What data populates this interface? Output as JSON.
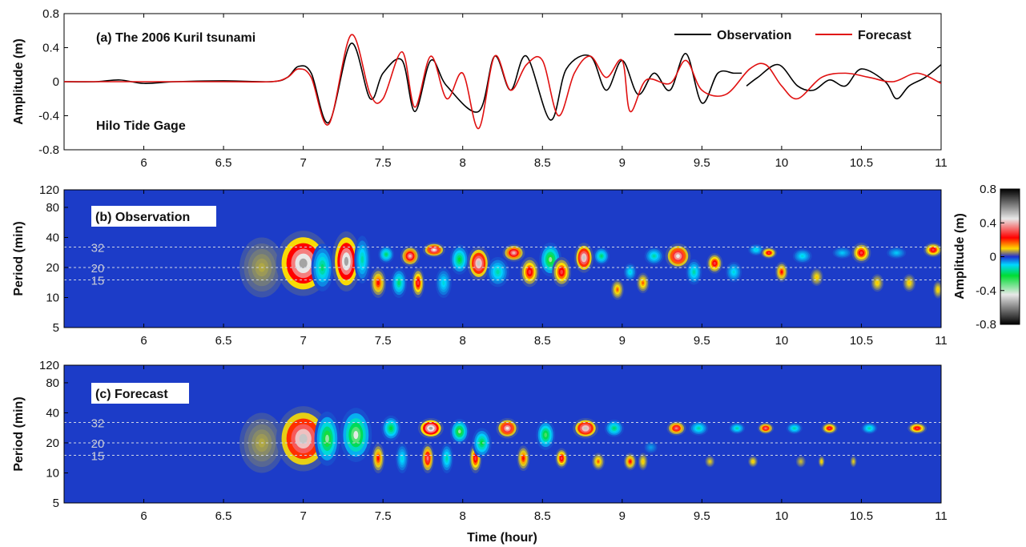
{
  "chart_data": [
    {
      "type": "line",
      "panel_label": "(a) The 2006 Kuril tsunami",
      "note": "Hilo Tide Gage",
      "ylabel": "Amplitude (m)",
      "xlim": [
        5.5,
        11
      ],
      "ylim": [
        -0.8,
        0.8
      ],
      "x_ticks": [
        "6",
        "6.5",
        "7",
        "7.5",
        "8",
        "8.5",
        "9",
        "9.5",
        "10",
        "10.5",
        "11"
      ],
      "y_ticks": [
        "-0.8",
        "-0.4",
        "0",
        "0.4",
        "0.8"
      ],
      "legend_position": "top-right",
      "series": [
        {
          "name": "Observation",
          "color": "#000000",
          "x": [
            5.5,
            5.7,
            5.85,
            6.0,
            6.2,
            6.5,
            6.8,
            6.9,
            6.97,
            7.05,
            7.16,
            7.3,
            7.42,
            7.5,
            7.62,
            7.7,
            7.8,
            7.9,
            8.1,
            8.2,
            8.3,
            8.4,
            8.55,
            8.65,
            8.8,
            8.9,
            9.0,
            9.1,
            9.2,
            9.3,
            9.4,
            9.5,
            9.6,
            9.7,
            9.75
          ],
          "y": [
            0,
            0,
            0.02,
            -0.02,
            0,
            0.01,
            0,
            0.05,
            0.18,
            0.1,
            -0.48,
            0.45,
            -0.2,
            0.1,
            0.25,
            -0.35,
            0.25,
            -0.05,
            -0.35,
            0.3,
            -0.1,
            0.3,
            -0.45,
            0.15,
            0.3,
            -0.1,
            0.25,
            -0.15,
            0.1,
            -0.1,
            0.33,
            -0.25,
            0.1,
            0.1,
            0.1
          ]
        },
        {
          "name": "Observation",
          "color": "#000000",
          "x": [
            9.78,
            9.85,
            9.98,
            10.1,
            10.2,
            10.3,
            10.4,
            10.5,
            10.65,
            10.72,
            10.8,
            10.9,
            11.0
          ],
          "y": [
            -0.05,
            0.05,
            0.2,
            -0.05,
            -0.1,
            0.02,
            -0.05,
            0.15,
            0.0,
            -0.2,
            -0.05,
            0.05,
            0.2
          ]
        },
        {
          "name": "Forecast",
          "color": "#e01010",
          "x": [
            5.5,
            6.0,
            6.5,
            6.8,
            6.9,
            6.97,
            7.05,
            7.16,
            7.3,
            7.42,
            7.5,
            7.62,
            7.7,
            7.8,
            7.9,
            8.0,
            8.1,
            8.2,
            8.3,
            8.4,
            8.5,
            8.6,
            8.7,
            8.8,
            8.9,
            9.0,
            9.05,
            9.15,
            9.3,
            9.4,
            9.5,
            9.65,
            9.8,
            9.9,
            10.0,
            10.1,
            10.25,
            10.4,
            10.55,
            10.7,
            10.85,
            11.0
          ],
          "y": [
            0,
            0,
            0,
            0,
            0.05,
            0.15,
            0.05,
            -0.5,
            0.55,
            -0.15,
            -0.2,
            0.35,
            -0.3,
            0.3,
            -0.2,
            0.1,
            -0.55,
            0.3,
            -0.1,
            0.2,
            0.25,
            -0.4,
            0.1,
            0.3,
            0.05,
            0.25,
            -0.35,
            0.02,
            -0.02,
            0.25,
            -0.1,
            -0.15,
            0.15,
            0.2,
            -0.05,
            -0.2,
            0.05,
            0.1,
            0.05,
            0.0,
            0.1,
            -0.02
          ]
        }
      ]
    },
    {
      "type": "heatmap",
      "panel_label": "(b) Observation",
      "ylabel": "Period (min)",
      "xlim": [
        5.5,
        11
      ],
      "y_scale": "log",
      "ylim": [
        5,
        120
      ],
      "x_ticks": [
        "6",
        "6.5",
        "7",
        "7.5",
        "8",
        "8.5",
        "9",
        "9.5",
        "10",
        "10.5",
        "11"
      ],
      "y_ticks": [
        "5",
        "10",
        "20",
        "40",
        "80",
        "120"
      ],
      "reference_lines": [
        "32",
        "20",
        "15"
      ],
      "blobs": [
        [
          6.74,
          20,
          0.14,
          4.0,
          0.08
        ],
        [
          7.0,
          22,
          0.17,
          4.5,
          0.55
        ],
        [
          7.12,
          20,
          0.07,
          3.0,
          -0.3
        ],
        [
          7.27,
          23,
          0.09,
          4.0,
          0.55
        ],
        [
          7.37,
          24,
          0.05,
          3.0,
          -0.25
        ],
        [
          7.47,
          14,
          0.05,
          2.0,
          0.25
        ],
        [
          7.52,
          27,
          0.05,
          1.5,
          -0.3
        ],
        [
          7.6,
          14,
          0.05,
          2.0,
          -0.3
        ],
        [
          7.67,
          26,
          0.06,
          1.6,
          0.4
        ],
        [
          7.72,
          14,
          0.04,
          2.0,
          0.3
        ],
        [
          7.82,
          30,
          0.07,
          1.4,
          0.45
        ],
        [
          7.88,
          14,
          0.05,
          2.0,
          -0.2
        ],
        [
          7.98,
          24,
          0.06,
          2.0,
          -0.35
        ],
        [
          8.1,
          22,
          0.07,
          2.2,
          0.5
        ],
        [
          8.22,
          18,
          0.07,
          2.0,
          -0.25
        ],
        [
          8.32,
          28,
          0.07,
          1.5,
          0.4
        ],
        [
          8.42,
          18,
          0.06,
          2.0,
          0.3
        ],
        [
          8.55,
          24,
          0.07,
          2.2,
          -0.45
        ],
        [
          8.62,
          18,
          0.06,
          2.0,
          0.3
        ],
        [
          8.76,
          25,
          0.06,
          2.0,
          0.5
        ],
        [
          8.87,
          26,
          0.05,
          1.5,
          -0.3
        ],
        [
          8.97,
          12,
          0.04,
          1.6,
          0.2
        ],
        [
          9.05,
          18,
          0.04,
          1.5,
          -0.2
        ],
        [
          9.13,
          14,
          0.04,
          1.6,
          0.2
        ],
        [
          9.2,
          26,
          0.06,
          1.5,
          -0.25
        ],
        [
          9.35,
          26,
          0.08,
          1.8,
          0.45
        ],
        [
          9.45,
          18,
          0.05,
          1.8,
          -0.25
        ],
        [
          9.58,
          22,
          0.05,
          1.6,
          0.3
        ],
        [
          9.7,
          18,
          0.05,
          1.6,
          -0.2
        ],
        [
          9.84,
          30,
          0.05,
          1.3,
          -0.2
        ],
        [
          9.92,
          28,
          0.05,
          1.3,
          0.3
        ],
        [
          10.0,
          18,
          0.04,
          1.6,
          0.25
        ],
        [
          10.13,
          26,
          0.06,
          1.4,
          -0.2
        ],
        [
          10.22,
          16,
          0.04,
          1.5,
          0.15
        ],
        [
          10.38,
          28,
          0.06,
          1.3,
          -0.15
        ],
        [
          10.5,
          28,
          0.06,
          1.6,
          0.3
        ],
        [
          10.6,
          14,
          0.04,
          1.5,
          0.15
        ],
        [
          10.72,
          28,
          0.06,
          1.3,
          -0.15
        ],
        [
          10.8,
          14,
          0.04,
          1.5,
          0.15
        ],
        [
          10.95,
          30,
          0.06,
          1.4,
          0.3
        ],
        [
          10.98,
          12,
          0.03,
          1.5,
          0.15
        ]
      ]
    },
    {
      "type": "heatmap",
      "panel_label": "(c) Forecast",
      "ylabel": "Period (min)",
      "xlabel": "Time (hour)",
      "xlim": [
        5.5,
        11
      ],
      "y_scale": "log",
      "ylim": [
        5,
        120
      ],
      "x_ticks": [
        "6",
        "6.5",
        "7",
        "7.5",
        "8",
        "8.5",
        "9",
        "9.5",
        "10",
        "10.5",
        "11"
      ],
      "y_ticks": [
        "5",
        "10",
        "20",
        "40",
        "80",
        "120"
      ],
      "reference_lines": [
        "32",
        "20",
        "15"
      ],
      "blobs": [
        [
          6.74,
          20,
          0.14,
          4.0,
          0.08
        ],
        [
          7.0,
          22,
          0.17,
          4.5,
          0.5
        ],
        [
          7.15,
          22,
          0.08,
          3.5,
          -0.45
        ],
        [
          7.33,
          24,
          0.1,
          3.5,
          -0.5
        ],
        [
          7.47,
          14,
          0.04,
          2.0,
          0.25
        ],
        [
          7.55,
          28,
          0.06,
          1.8,
          -0.35
        ],
        [
          7.62,
          14,
          0.04,
          2.0,
          -0.2
        ],
        [
          7.8,
          28,
          0.08,
          1.6,
          0.55
        ],
        [
          7.78,
          14,
          0.04,
          2.0,
          0.35
        ],
        [
          7.9,
          14,
          0.04,
          2.0,
          -0.25
        ],
        [
          7.98,
          26,
          0.06,
          1.8,
          -0.45
        ],
        [
          8.08,
          14,
          0.04,
          2.0,
          0.3
        ],
        [
          8.12,
          20,
          0.06,
          2.0,
          -0.35
        ],
        [
          8.28,
          28,
          0.07,
          1.6,
          0.45
        ],
        [
          8.38,
          14,
          0.04,
          1.8,
          0.25
        ],
        [
          8.52,
          24,
          0.06,
          2.0,
          -0.4
        ],
        [
          8.62,
          14,
          0.04,
          1.6,
          0.3
        ],
        [
          8.77,
          28,
          0.08,
          1.6,
          0.5
        ],
        [
          8.85,
          13,
          0.04,
          1.5,
          0.2
        ],
        [
          8.95,
          28,
          0.06,
          1.5,
          -0.3
        ],
        [
          9.05,
          13,
          0.04,
          1.5,
          0.25
        ],
        [
          9.13,
          13,
          0.03,
          1.5,
          0.15
        ],
        [
          9.18,
          18,
          0.04,
          1.3,
          -0.1
        ],
        [
          9.34,
          28,
          0.06,
          1.4,
          0.35
        ],
        [
          9.48,
          28,
          0.06,
          1.4,
          -0.25
        ],
        [
          9.55,
          13,
          0.03,
          1.3,
          0.12
        ],
        [
          9.72,
          28,
          0.05,
          1.3,
          -0.25
        ],
        [
          9.82,
          13,
          0.03,
          1.3,
          0.15
        ],
        [
          9.9,
          28,
          0.05,
          1.3,
          0.35
        ],
        [
          10.08,
          28,
          0.05,
          1.3,
          -0.25
        ],
        [
          10.12,
          13,
          0.03,
          1.3,
          0.1
        ],
        [
          10.3,
          28,
          0.05,
          1.3,
          0.3
        ],
        [
          10.25,
          13,
          0.02,
          1.3,
          0.15
        ],
        [
          10.55,
          28,
          0.05,
          1.3,
          -0.25
        ],
        [
          10.45,
          13,
          0.02,
          1.3,
          0.12
        ],
        [
          10.85,
          28,
          0.06,
          1.3,
          0.3
        ]
      ]
    }
  ],
  "colorbar": {
    "label": "Amplitude (m)",
    "ticks": [
      "0.8",
      "0.4",
      "0",
      "-0.4",
      "-0.8"
    ],
    "stops": [
      "#000000",
      "#ffffff",
      "#ff0000",
      "#ffe600",
      "#ffffff",
      "#1f2fd0",
      "#00d7ff",
      "#00dd33",
      "#ffffff",
      "#000000"
    ]
  }
}
